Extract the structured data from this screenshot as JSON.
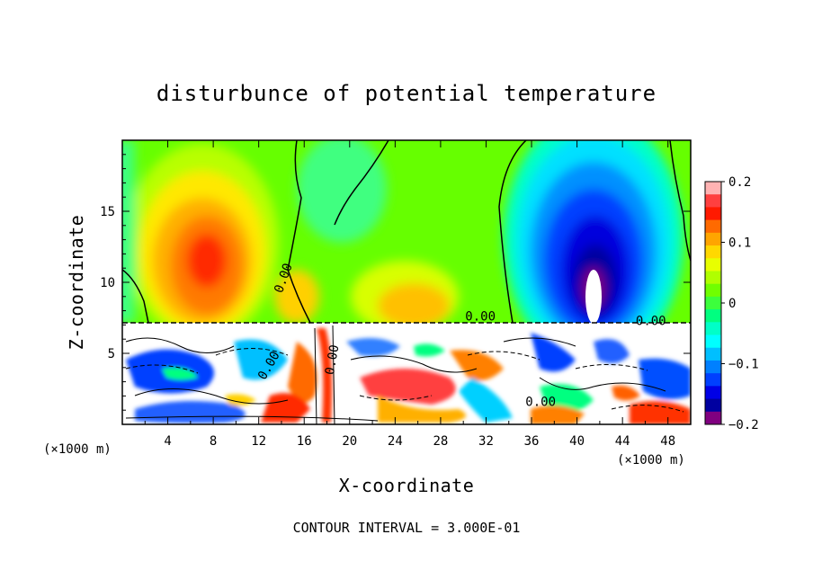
{
  "chart_data": {
    "type": "heatmap",
    "title": "disturbunce of potential temperature",
    "xlabel": "X-coordinate",
    "ylabel": "Z-coordinate",
    "x_unit": "(×1000 m)",
    "x_unit_right": "(×1000 m)",
    "xlim": [
      0,
      50
    ],
    "ylim": [
      0,
      20
    ],
    "x_ticks": [
      4,
      8,
      12,
      16,
      20,
      24,
      28,
      32,
      36,
      40,
      44,
      48
    ],
    "x_tick_labels": [
      "4",
      "8",
      "12",
      "16",
      "20",
      "24",
      "28",
      "32",
      "36",
      "40",
      "44",
      "48"
    ],
    "y_ticks": [
      5,
      10,
      15
    ],
    "y_tick_labels": [
      "5",
      "10",
      "15"
    ],
    "colorbar": {
      "range": [
        -0.2,
        0.2
      ],
      "ticks": [
        0.2,
        0.1,
        0,
        -0.1,
        -0.2
      ],
      "tick_labels": [
        "0.2",
        "0.1",
        "0",
        "−0.1",
        "−0.2"
      ],
      "colors": [
        "#ffb3b3",
        "#ff4040",
        "#ff1a00",
        "#ff6a00",
        "#ffa500",
        "#ffd800",
        "#e8ff00",
        "#b0ff00",
        "#70ff00",
        "#3cff3c",
        "#00ff80",
        "#00ffc8",
        "#00ffff",
        "#00bfff",
        "#0080ff",
        "#0040ff",
        "#0000e6",
        "#0000a0",
        "#800080"
      ]
    },
    "contour_labels": [
      {
        "text": "0.00",
        "x": 14.5,
        "z": 10.2,
        "rotate": -70
      },
      {
        "text": "0.00",
        "x": 31.5,
        "z": 7.3,
        "rotate": 0
      },
      {
        "text": "0.00",
        "x": 36.8,
        "z": 1.3,
        "rotate": 0
      },
      {
        "text": "0.00",
        "x": 46.5,
        "z": 7.0,
        "rotate": 0
      },
      {
        "text": "0.00",
        "x": 13.2,
        "z": 4.0,
        "rotate": -60
      },
      {
        "text": "0.00",
        "x": 18.8,
        "z": 4.5,
        "rotate": -80
      }
    ],
    "grid": false,
    "legend": "colorbar-right",
    "contour_interval_label": "CONTOUR INTERVAL = 3.000E-01"
  }
}
